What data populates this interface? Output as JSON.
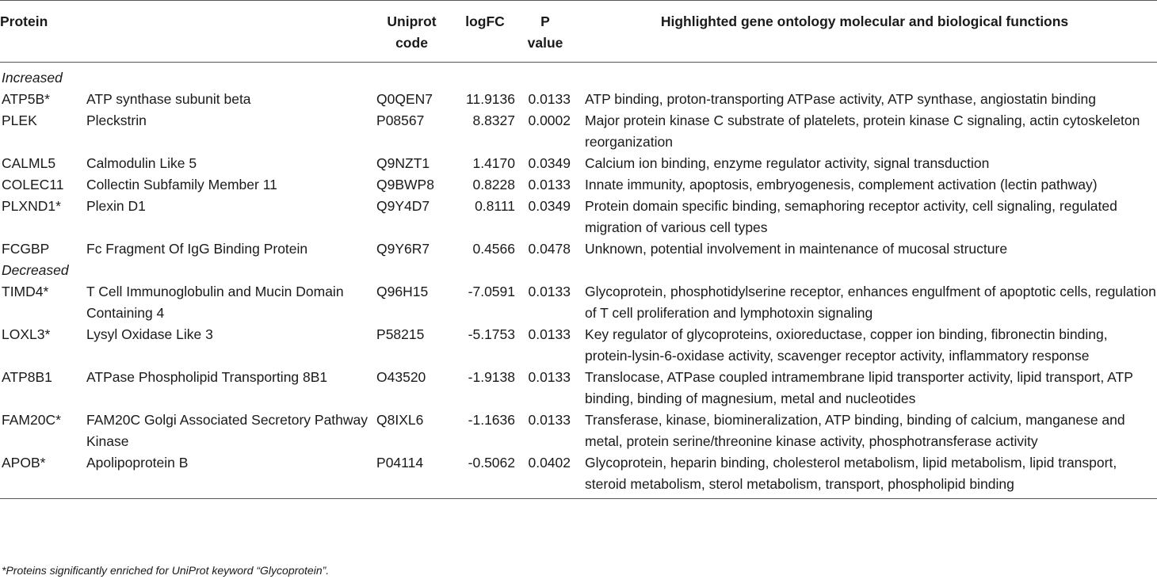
{
  "table": {
    "headers": {
      "protein": "Protein",
      "uniprot_line1": "Uniprot",
      "uniprot_line2": "code",
      "logfc": "logFC",
      "p_line1": "P",
      "p_line2": "value",
      "functions": "Highlighted gene ontology molecular and biological functions"
    },
    "groups": [
      {
        "label": "Increased",
        "rows": [
          {
            "symbol": "ATP5B*",
            "name": "ATP synthase subunit beta",
            "code": "Q0QEN7",
            "logfc": "11.9136",
            "p": "0.0133",
            "functions": "ATP binding, proton-transporting ATPase activity, ATP synthase, angiostatin binding"
          },
          {
            "symbol": "PLEK",
            "name": "Pleckstrin",
            "code": "P08567",
            "logfc": "8.8327",
            "p": "0.0002",
            "functions": "Major protein kinase C substrate of platelets, protein kinase C signaling, actin cytoskeleton reorganization"
          },
          {
            "symbol": "CALML5",
            "name": "Calmodulin Like 5",
            "code": "Q9NZT1",
            "logfc": "1.4170",
            "p": "0.0349",
            "functions": "Calcium ion binding, enzyme regulator activity, signal transduction"
          },
          {
            "symbol": "COLEC11",
            "name": "Collectin Subfamily Member 11",
            "code": "Q9BWP8",
            "logfc": "0.8228",
            "p": "0.0133",
            "functions": "Innate immunity, apoptosis, embryogenesis, complement activation (lectin pathway)"
          },
          {
            "symbol": "PLXND1*",
            "name": "Plexin D1",
            "code": "Q9Y4D7",
            "logfc": "0.8111",
            "p": "0.0349",
            "functions": "Protein domain specific binding, semaphoring receptor activity, cell signaling, regulated migration of various cell types"
          },
          {
            "symbol": "FCGBP",
            "name": "Fc Fragment Of IgG Binding Protein",
            "code": "Q9Y6R7",
            "logfc": "0.4566",
            "p": "0.0478",
            "functions": "Unknown, potential involvement in maintenance of mucosal structure"
          }
        ]
      },
      {
        "label": "Decreased",
        "rows": [
          {
            "symbol": "TIMD4*",
            "name": "T Cell Immunoglobulin and Mucin Domain Containing 4",
            "code": "Q96H15",
            "logfc": "-7.0591",
            "p": "0.0133",
            "functions": "Glycoprotein, phosphotidylserine receptor, enhances engulfment of apoptotic cells, regulation of T cell proliferation and lymphotoxin signaling"
          },
          {
            "symbol": "LOXL3*",
            "name": "Lysyl Oxidase Like 3",
            "code": "P58215",
            "logfc": "-5.1753",
            "p": "0.0133",
            "functions": "Key regulator of glycoproteins, oxioreductase, copper ion binding, fibronectin binding, protein-lysin-6-oxidase activity, scavenger receptor activity, inflammatory response"
          },
          {
            "symbol": "ATP8B1",
            "name": "ATPase Phospholipid Transporting 8B1",
            "code": "O43520",
            "logfc": "-1.9138",
            "p": "0.0133",
            "functions": "Translocase, ATPase coupled intramembrane lipid transporter activity, lipid transport, ATP binding, binding of magnesium, metal and nucleotides"
          },
          {
            "symbol": "FAM20C*",
            "name": "FAM20C Golgi Associated Secretory Pathway Kinase",
            "code": "Q8IXL6",
            "logfc": "-1.1636",
            "p": "0.0133",
            "functions": "Transferase, kinase, biomineralization, ATP binding, binding of calcium, manganese and metal, protein serine/threonine kinase activity, phosphotransferase activity"
          },
          {
            "symbol": "APOB*",
            "name": "Apolipoprotein B",
            "code": "P04114",
            "logfc": "-0.5062",
            "p": "0.0402",
            "functions": "Glycoprotein, heparin binding, cholesterol metabolism, lipid metabolism, lipid transport, steroid metabolism, sterol metabolism, transport, phospholipid binding"
          }
        ]
      }
    ]
  },
  "footnote": "*Proteins significantly enriched for UniProt keyword “Glycoprotein”."
}
